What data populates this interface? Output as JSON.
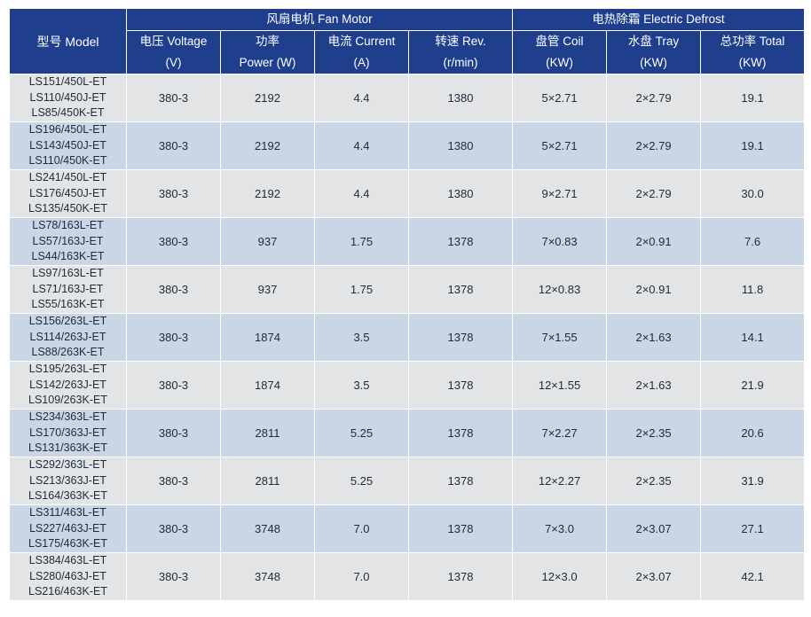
{
  "header": {
    "model": "型号 Model",
    "fan_motor_group": "风扇电机  Fan Motor",
    "defrost_group": "电热除霜 Electric Defrost",
    "columns": [
      {
        "label": "电压 Voltage",
        "unit": "(V)"
      },
      {
        "label": "功率",
        "unit": "Power (W)"
      },
      {
        "label": "电流 Current",
        "unit": "(A)"
      },
      {
        "label": "转速 Rev.",
        "unit": "(r/min)"
      },
      {
        "label": "盘管 Coil",
        "unit": "(KW)"
      },
      {
        "label": "水盘 Tray",
        "unit": "(KW)"
      },
      {
        "label": "总功率 Total",
        "unit": "(KW)"
      }
    ]
  },
  "rows": [
    {
      "models": [
        "LS151/450L-ET",
        "LS110/450J-ET",
        "LS85/450K-ET"
      ],
      "voltage": "380-3",
      "power": "2192",
      "current": "4.4",
      "rev": "1380",
      "coil": "5×2.71",
      "tray": "2×2.79",
      "total": "19.1"
    },
    {
      "models": [
        "LS196/450L-ET",
        "LS143/450J-ET",
        "LS110/450K-ET"
      ],
      "voltage": "380-3",
      "power": "2192",
      "current": "4.4",
      "rev": "1380",
      "coil": "5×2.71",
      "tray": "2×2.79",
      "total": "19.1"
    },
    {
      "models": [
        "LS241/450L-ET",
        "LS176/450J-ET",
        "LS135/450K-ET"
      ],
      "voltage": "380-3",
      "power": "2192",
      "current": "4.4",
      "rev": "1380",
      "coil": "9×2.71",
      "tray": "2×2.79",
      "total": "30.0"
    },
    {
      "models": [
        "LS78/163L-ET",
        "LS57/163J-ET",
        "LS44/163K-ET"
      ],
      "voltage": "380-3",
      "power": "937",
      "current": "1.75",
      "rev": "1378",
      "coil": "7×0.83",
      "tray": "2×0.91",
      "total": "7.6"
    },
    {
      "models": [
        "LS97/163L-ET",
        "LS71/163J-ET",
        "LS55/163K-ET"
      ],
      "voltage": "380-3",
      "power": "937",
      "current": "1.75",
      "rev": "1378",
      "coil": "12×0.83",
      "tray": "2×0.91",
      "total": "11.8"
    },
    {
      "models": [
        "LS156/263L-ET",
        "LS114/263J-ET",
        "LS88/263K-ET"
      ],
      "voltage": "380-3",
      "power": "1874",
      "current": "3.5",
      "rev": "1378",
      "coil": "7×1.55",
      "tray": "2×1.63",
      "total": "14.1"
    },
    {
      "models": [
        "LS195/263L-ET",
        "LS142/263J-ET",
        "LS109/263K-ET"
      ],
      "voltage": "380-3",
      "power": "1874",
      "current": "3.5",
      "rev": "1378",
      "coil": "12×1.55",
      "tray": "2×1.63",
      "total": "21.9"
    },
    {
      "models": [
        "LS234/363L-ET",
        "LS170/363J-ET",
        "LS131/363K-ET"
      ],
      "voltage": "380-3",
      "power": "2811",
      "current": "5.25",
      "rev": "1378",
      "coil": "7×2.27",
      "tray": "2×2.35",
      "total": "20.6"
    },
    {
      "models": [
        "LS292/363L-ET",
        "LS213/363J-ET",
        "LS164/363K-ET"
      ],
      "voltage": "380-3",
      "power": "2811",
      "current": "5.25",
      "rev": "1378",
      "coil": "12×2.27",
      "tray": "2×2.35",
      "total": "31.9"
    },
    {
      "models": [
        "LS311/463L-ET",
        "LS227/463J-ET",
        "LS175/463K-ET"
      ],
      "voltage": "380-3",
      "power": "3748",
      "current": "7.0",
      "rev": "1378",
      "coil": "7×3.0",
      "tray": "2×3.07",
      "total": "27.1"
    },
    {
      "models": [
        "LS384/463L-ET",
        "LS280/463J-ET",
        "LS216/463K-ET"
      ],
      "voltage": "380-3",
      "power": "3748",
      "current": "7.0",
      "rev": "1378",
      "coil": "12×3.0",
      "tray": "2×3.07",
      "total": "42.1"
    }
  ],
  "colors": {
    "header_bg": "#1f3f8c",
    "row_light": "#e3e4e6",
    "row_blue": "#c8d6e5"
  }
}
